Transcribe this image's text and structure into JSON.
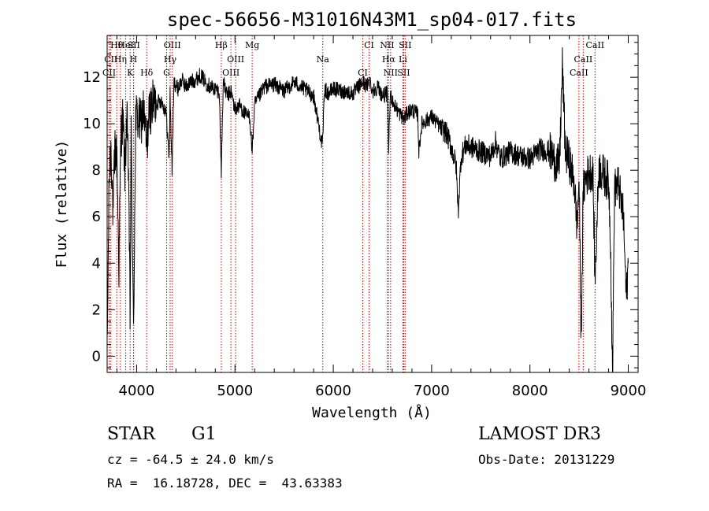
{
  "chart_data": {
    "type": "line",
    "title": "spec-56656-M31016N43M1_sp04-017.fits",
    "xlabel": "Wavelength (Å)",
    "ylabel": "Flux (relative)",
    "xlim": [
      3700,
      9100
    ],
    "ylim": [
      -0.7,
      13.8
    ],
    "xticks": [
      4000,
      5000,
      6000,
      7000,
      8000,
      9000
    ],
    "yticks": [
      0,
      2,
      4,
      6,
      8,
      10,
      12
    ],
    "xtick_labels": [
      "4000",
      "5000",
      "6000",
      "7000",
      "8000",
      "9000"
    ],
    "ytick_labels": [
      "0",
      "2",
      "4",
      "6",
      "8",
      "10",
      "12"
    ],
    "line_color": "#000000",
    "marker_color": "#cc0000",
    "series": [
      {
        "name": "flux",
        "x": [
          3700,
          3720,
          3740,
          3760,
          3780,
          3800,
          3820,
          3840,
          3860,
          3880,
          3900,
          3920,
          3933,
          3945,
          3968,
          3990,
          4010,
          4040,
          4070,
          4101,
          4130,
          4160,
          4200,
          4250,
          4300,
          4330,
          4340,
          4360,
          4380,
          4420,
          4460,
          4500,
          4550,
          4600,
          4650,
          4700,
          4750,
          4800,
          4840,
          4861,
          4880,
          4920,
          4960,
          5000,
          5050,
          5100,
          5150,
          5175,
          5200,
          5250,
          5300,
          5400,
          5500,
          5600,
          5700,
          5800,
          5890,
          5910,
          5950,
          6000,
          6100,
          6200,
          6300,
          6340,
          6370,
          6400,
          6450,
          6500,
          6550,
          6563,
          6580,
          6620,
          6680,
          6720,
          6760,
          6800,
          6860,
          6870,
          6900,
          7000,
          7100,
          7150,
          7200,
          7250,
          7270,
          7300,
          7350,
          7400,
          7500,
          7600,
          7650,
          7700,
          7800,
          7900,
          8000,
          8100,
          8200,
          8250,
          8300,
          8330,
          8360,
          8400,
          8450,
          8480,
          8500,
          8520,
          8542,
          8560,
          8600,
          8640,
          8662,
          8700,
          8750,
          8800,
          8820,
          8840,
          8860,
          8900,
          8950,
          8980,
          9000
        ],
        "y": [
          0.0,
          7.5,
          9.2,
          6.0,
          9.0,
          8.5,
          3.8,
          9.5,
          10.2,
          8.0,
          10.3,
          7.5,
          1.5,
          9.5,
          0.8,
          10.4,
          10.2,
          10.0,
          10.6,
          9.0,
          10.5,
          10.8,
          10.9,
          11.0,
          10.5,
          8.5,
          11.3,
          8.0,
          11.8,
          11.5,
          11.9,
          11.6,
          11.8,
          11.9,
          12.1,
          11.8,
          11.6,
          11.5,
          11.4,
          7.9,
          11.8,
          11.2,
          11.4,
          10.6,
          10.8,
          10.4,
          10.3,
          8.8,
          10.8,
          11.2,
          11.6,
          11.7,
          11.4,
          11.8,
          11.5,
          11.2,
          9.0,
          11.5,
          11.3,
          11.5,
          11.4,
          11.3,
          11.8,
          11.6,
          11.9,
          11.4,
          11.6,
          11.2,
          11.3,
          8.9,
          11.3,
          10.8,
          10.4,
          10.2,
          10.5,
          10.6,
          10.4,
          8.8,
          10.0,
          10.3,
          9.8,
          9.6,
          9.0,
          8.2,
          6.2,
          8.6,
          9.1,
          9.0,
          8.8,
          8.6,
          9.2,
          8.5,
          8.8,
          8.6,
          8.5,
          8.9,
          8.8,
          8.4,
          8.2,
          12.5,
          8.8,
          8.4,
          7.5,
          5.5,
          7.8,
          0.5,
          7.0,
          7.6,
          7.9,
          8.0,
          3.2,
          8.1,
          7.8,
          7.5,
          5.0,
          -0.9,
          7.2,
          7.4,
          6.0,
          2.5,
          4.0
        ]
      }
    ],
    "lines": [
      {
        "name": "Hθ",
        "wavelength": 3798
      },
      {
        "name": "CII",
        "wavelength": 3738
      },
      {
        "name": "CII",
        "wavelength": 3720
      },
      {
        "name": "HeI",
        "wavelength": 3889
      },
      {
        "name": "Hη",
        "wavelength": 3835
      },
      {
        "name": "K",
        "wavelength": 3934
      },
      {
        "name": "SII",
        "wavelength": 3970
      },
      {
        "name": "H",
        "wavelength": 3968
      },
      {
        "name": "Hδ",
        "wavelength": 4102
      },
      {
        "name": "OIII",
        "wavelength": 4363
      },
      {
        "name": "Hγ",
        "wavelength": 4341
      },
      {
        "name": "G",
        "wavelength": 4305
      },
      {
        "name": "Hβ",
        "wavelength": 4861
      },
      {
        "name": "OIII",
        "wavelength": 5007
      },
      {
        "name": "OIII",
        "wavelength": 4959
      },
      {
        "name": "Mg",
        "wavelength": 5175
      },
      {
        "name": "Na",
        "wavelength": 5893
      },
      {
        "name": "CI",
        "wavelength": 6300
      },
      {
        "name": "CI",
        "wavelength": 6364
      },
      {
        "name": "Hα",
        "wavelength": 6563
      },
      {
        "name": "SII",
        "wavelength": 6716
      },
      {
        "name": "NII",
        "wavelength": 6548
      },
      {
        "name": "Li",
        "wavelength": 6708
      },
      {
        "name": "NII",
        "wavelength": 6583
      },
      {
        "name": "SII",
        "wavelength": 6731
      },
      {
        "name": "CaII",
        "wavelength": 8542
      },
      {
        "name": "CaII",
        "wavelength": 8498
      },
      {
        "name": "CaII",
        "wavelength": 8662
      }
    ]
  },
  "info": {
    "class": "STAR",
    "subclass": "G1",
    "survey": "LAMOST DR3",
    "cz": "cz = -64.5 ± 24.0 km/s",
    "obs_date": "Obs-Date: 20131229",
    "radec": "RA =  16.18728, DEC =  43.63383"
  }
}
